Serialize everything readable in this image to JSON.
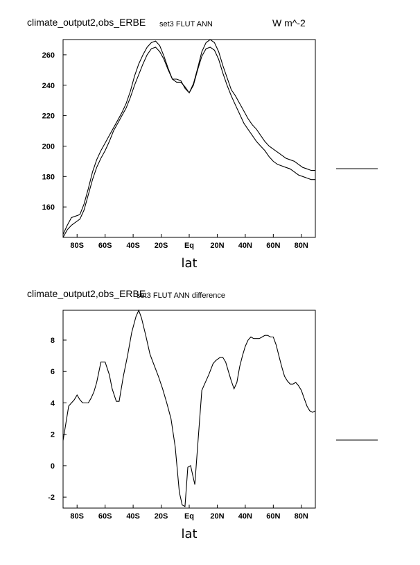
{
  "chart_data": [
    {
      "type": "line",
      "title_left": "climate_output2,obs_ERBE",
      "title_center": "set3 FLUT ANN",
      "units": "W m^-2",
      "xlabel": "lat",
      "ylabel": "",
      "xlim": [
        -90,
        90
      ],
      "ylim": [
        140,
        270
      ],
      "x_ticks": [
        -80,
        -60,
        -40,
        -20,
        0,
        20,
        40,
        60,
        80
      ],
      "x_tick_labels": [
        "80S",
        "60S",
        "40S",
        "20S",
        "Eq",
        "20N",
        "40N",
        "60N",
        "80N"
      ],
      "y_ticks": [
        160,
        180,
        200,
        220,
        240,
        260
      ],
      "y_tick_labels": [
        "160",
        "180",
        "200",
        "220",
        "240",
        "260"
      ],
      "grid": false,
      "series": [
        {
          "x": [
            -90,
            -87,
            -84,
            -81,
            -78,
            -75,
            -72,
            -69,
            -66,
            -63,
            -60,
            -57,
            -54,
            -51,
            -48,
            -45,
            -42,
            -39,
            -36,
            -33,
            -30,
            -27,
            -24,
            -21,
            -18,
            -15,
            -12,
            -9,
            -6,
            -3,
            0,
            3,
            6,
            9,
            12,
            15,
            18,
            21,
            24,
            27,
            30,
            33,
            36,
            39,
            42,
            45,
            48,
            51,
            54,
            57,
            60,
            63,
            66,
            69,
            72,
            75,
            78,
            81,
            84,
            87,
            90
          ],
          "y": [
            140,
            145,
            148,
            150,
            152,
            158,
            168,
            178,
            186,
            192,
            197,
            203,
            210,
            215,
            220,
            225,
            232,
            240,
            247,
            254,
            260,
            264,
            265,
            262,
            257,
            250,
            244,
            244,
            243,
            238,
            235,
            240,
            250,
            259,
            264,
            265,
            263,
            257,
            248,
            240,
            233,
            227,
            221,
            215,
            211,
            207,
            203,
            200,
            197,
            193,
            190,
            188,
            187,
            186,
            185,
            183,
            181,
            180,
            179,
            178,
            178
          ]
        },
        {
          "x": [
            -90,
            -87,
            -84,
            -81,
            -78,
            -75,
            -72,
            -69,
            -66,
            -63,
            -60,
            -57,
            -54,
            -51,
            -48,
            -45,
            -42,
            -39,
            -36,
            -33,
            -30,
            -27,
            -24,
            -21,
            -18,
            -15,
            -12,
            -9,
            -6,
            -3,
            0,
            3,
            6,
            9,
            12,
            15,
            18,
            21,
            24,
            27,
            30,
            33,
            36,
            39,
            42,
            45,
            48,
            51,
            54,
            57,
            60,
            63,
            66,
            69,
            72,
            75,
            78,
            81,
            84,
            87,
            90
          ],
          "y": [
            142,
            148,
            153,
            154,
            155,
            162,
            172,
            183,
            191,
            197,
            202,
            207,
            212,
            217,
            222,
            228,
            236,
            246,
            254,
            260,
            265,
            268,
            269,
            266,
            259,
            251,
            244,
            242,
            242,
            239,
            235,
            241,
            251,
            262,
            268,
            270,
            268,
            262,
            253,
            245,
            237,
            233,
            228,
            223,
            218,
            214,
            211,
            207,
            203,
            200,
            198,
            196,
            194,
            192,
            191,
            190,
            188,
            186,
            185,
            184,
            184
          ]
        }
      ]
    },
    {
      "type": "line",
      "title_left": "climate_output2,obs_ERBE",
      "title_center": "set3 FLUT ANN difference",
      "units": "",
      "xlabel": "lat",
      "ylabel": "",
      "xlim": [
        -90,
        90
      ],
      "ylim": [
        -2.7,
        9.9
      ],
      "x_ticks": [
        -80,
        -60,
        -40,
        -20,
        0,
        20,
        40,
        60,
        80
      ],
      "x_tick_labels": [
        "80S",
        "60S",
        "40S",
        "20S",
        "Eq",
        "20N",
        "40N",
        "60N",
        "80N"
      ],
      "y_ticks": [
        -2,
        0,
        2,
        4,
        6,
        8
      ],
      "y_tick_labels": [
        "-2",
        "0",
        "2",
        "4",
        "6",
        "8"
      ],
      "grid": false,
      "series": [
        {
          "x": [
            -90,
            -86,
            -82,
            -80,
            -78,
            -76,
            -74,
            -72,
            -70,
            -68,
            -66,
            -63,
            -60,
            -57,
            -55,
            -52,
            -50,
            -47,
            -44,
            -41,
            -38,
            -36,
            -34,
            -31,
            -28,
            -25,
            -22,
            -19,
            -16,
            -13,
            -10,
            -7,
            -5,
            -3,
            -1,
            1,
            4,
            6,
            9,
            11,
            14,
            17,
            19,
            22,
            24,
            26,
            28,
            30,
            32,
            34,
            36,
            38,
            40,
            42,
            44,
            46,
            48,
            50,
            52,
            54,
            56,
            58,
            60,
            62,
            64,
            66,
            68,
            70,
            72,
            74,
            76,
            78,
            80,
            82,
            84,
            86,
            88,
            90
          ],
          "y": [
            1.6,
            3.8,
            4.2,
            4.5,
            4.2,
            4.0,
            4.0,
            4.0,
            4.3,
            4.7,
            5.3,
            6.6,
            6.6,
            5.8,
            4.9,
            4.1,
            4.1,
            5.7,
            7.0,
            8.5,
            9.5,
            9.9,
            9.4,
            8.3,
            7.1,
            6.4,
            5.7,
            4.9,
            4.0,
            3.0,
            1.2,
            -1.7,
            -2.5,
            -2.6,
            -0.1,
            0.0,
            -1.2,
            1.2,
            4.8,
            5.2,
            5.8,
            6.5,
            6.7,
            6.9,
            6.9,
            6.6,
            6.0,
            5.4,
            4.9,
            5.3,
            6.3,
            7.0,
            7.6,
            8.0,
            8.2,
            8.1,
            8.1,
            8.1,
            8.2,
            8.3,
            8.3,
            8.2,
            8.2,
            7.7,
            7.0,
            6.3,
            5.7,
            5.4,
            5.2,
            5.2,
            5.3,
            5.1,
            4.8,
            4.3,
            3.8,
            3.5,
            3.4,
            3.5
          ]
        }
      ]
    }
  ]
}
